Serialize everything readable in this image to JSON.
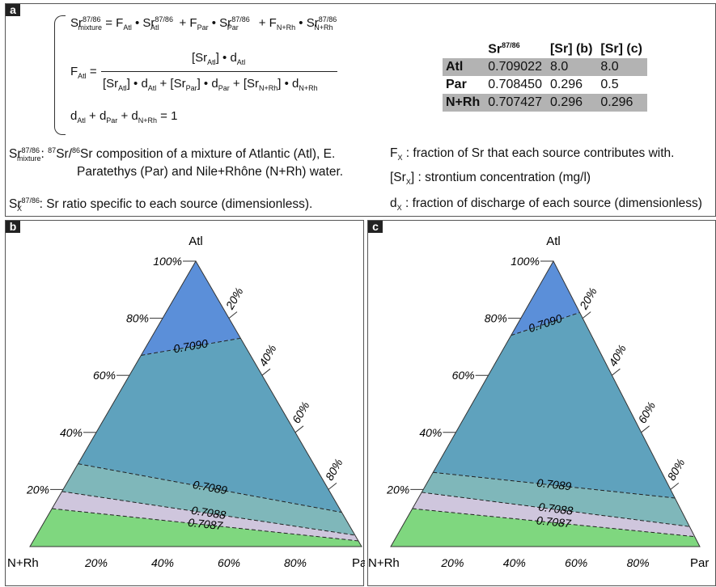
{
  "panel_a": {
    "label": "a",
    "equations": {
      "eq1": {
        "lhs": "Sr",
        "lhs_sup": "87/86",
        "lhs_sub": "mixture",
        "rhs_sup": "87/86",
        "F": "F",
        "Sr": "Sr",
        "atl": "Atl",
        "par": "Par",
        "nrh": "N+Rh"
      },
      "eq2": {
        "F": "F",
        "sub": "Atl",
        "d": "d"
      },
      "eq3": {
        "rhs": "= 1"
      }
    },
    "table": {
      "headers": [
        "",
        "Sr87/86",
        "[Sr] (b)",
        "[Sr] (c)"
      ],
      "rows": [
        {
          "name": "Atl",
          "sr": "0.709022",
          "b": "8.0",
          "c": "8.0"
        },
        {
          "name": "Par",
          "sr": "0.708450",
          "b": "0.296",
          "c": "0.5"
        },
        {
          "name": "N+Rh",
          "sr": "0.707427",
          "b": "0.296",
          "c": "0.296"
        }
      ]
    },
    "definitions": {
      "mixture_line1": "Sr composition of a mixture of Atlantic (Atl), E.",
      "mixture_line2": "Paratethys (Par) and Nile+Rhône (N+Rh) water.",
      "ratio": ": Sr ratio specific to each source (dimensionless).",
      "fx": ": fraction of Sr that each source contributes with.",
      "srx": ": strontium concentration (mg/l)",
      "dx": ": fraction of discharge of each source (dimensionless)"
    }
  },
  "chart_data": [
    {
      "type": "ternary",
      "panel": "b",
      "vertices": {
        "top": "Atl",
        "left": "N+Rh",
        "right": "Par"
      },
      "left_axis_ticks": [
        "20%",
        "40%",
        "60%",
        "80%",
        "100%"
      ],
      "right_axis_ticks": [
        "20%",
        "40%",
        "60%",
        "80%"
      ],
      "bottom_axis_ticks": [
        "20%",
        "40%",
        "60%",
        "80%"
      ],
      "contours": [
        {
          "label": "0.7090",
          "atl_at_nrh_side": 0.67,
          "atl_at_par_side": 0.73
        },
        {
          "label": "0.7089",
          "atl_at_nrh_side": 0.29,
          "atl_at_par_side": 0.12
        },
        {
          "label": "0.7088",
          "atl_at_nrh_side": 0.193,
          "atl_at_par_side": 0.04
        },
        {
          "label": "0.7087",
          "atl_at_nrh_side": 0.133,
          "atl_at_par_side": 0.02
        }
      ],
      "colors": {
        "high": "#5b8fd9",
        "mid": "#5fa2bd",
        "lower": "#7fb7ba",
        "lilac": "#cfc6dd",
        "low": "#7fd77f"
      }
    },
    {
      "type": "ternary",
      "panel": "c",
      "vertices": {
        "top": "Atl",
        "left": "N+Rh",
        "right": "Par"
      },
      "left_axis_ticks": [
        "20%",
        "40%",
        "60%",
        "80%",
        "100%"
      ],
      "right_axis_ticks": [
        "20%",
        "40%",
        "60%",
        "80%"
      ],
      "bottom_axis_ticks": [
        "20%",
        "40%",
        "60%",
        "80%"
      ],
      "contours": [
        {
          "label": "0.7090",
          "atl_at_nrh_side": 0.74,
          "atl_at_par_side": 0.82
        },
        {
          "label": "0.7089",
          "atl_at_nrh_side": 0.26,
          "atl_at_par_side": 0.17
        },
        {
          "label": "0.7088",
          "atl_at_nrh_side": 0.19,
          "atl_at_par_side": 0.07
        },
        {
          "label": "0.7087",
          "atl_at_nrh_side": 0.133,
          "atl_at_par_side": 0.035
        }
      ],
      "colors": {
        "high": "#5b8fd9",
        "mid": "#5fa2bd",
        "lower": "#7fb7ba",
        "lilac": "#cfc6dd",
        "low": "#7fd77f"
      }
    }
  ]
}
